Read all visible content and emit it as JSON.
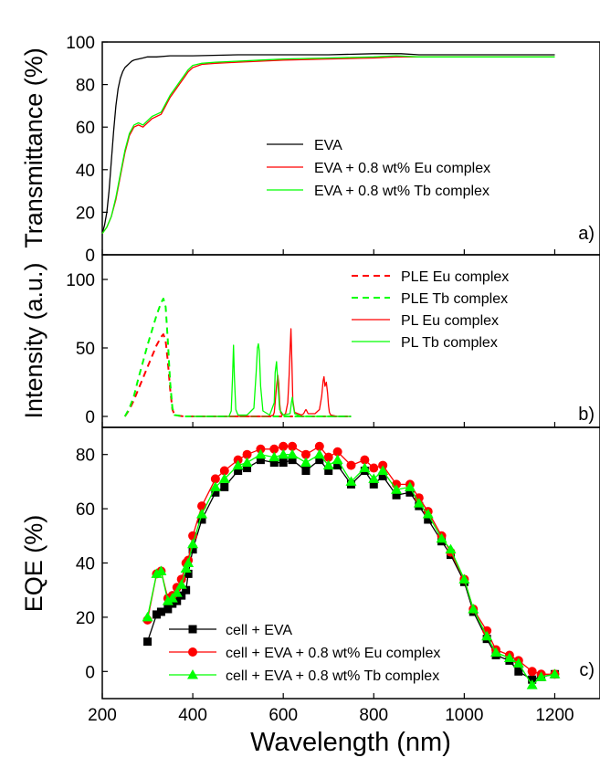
{
  "figure": {
    "xlabel": "Wavelength (nm)",
    "x_ticks": [
      200,
      400,
      600,
      800,
      1000,
      1200
    ]
  },
  "chart_data": [
    {
      "type": "line",
      "panel": "a)",
      "ylabel": "Transmittance (%)",
      "xlim": [
        200,
        1300
      ],
      "ylim": [
        0,
        100
      ],
      "y_ticks": [
        0,
        20,
        40,
        60,
        80,
        100
      ],
      "grid": false,
      "legend_position": "center-right",
      "series": [
        {
          "name": "EVA",
          "color": "#000000",
          "x": [
            200,
            205,
            210,
            215,
            220,
            225,
            230,
            235,
            240,
            245,
            250,
            255,
            260,
            265,
            270,
            280,
            290,
            300,
            320,
            350,
            400,
            500,
            600,
            700,
            800,
            860,
            900,
            1000,
            1100,
            1200
          ],
          "y": [
            10,
            14,
            20,
            30,
            44,
            58,
            70,
            78,
            83,
            86,
            88,
            89,
            90,
            91,
            91.5,
            92,
            92.5,
            93,
            93,
            93.5,
            93.5,
            94,
            94,
            94,
            94.5,
            94.5,
            94,
            94,
            94,
            94
          ]
        },
        {
          "name": "EVA + 0.8 wt% Eu complex",
          "color": "#ff0000",
          "x": [
            200,
            210,
            220,
            230,
            240,
            250,
            260,
            270,
            280,
            290,
            300,
            310,
            320,
            330,
            340,
            350,
            360,
            370,
            380,
            390,
            400,
            420,
            450,
            500,
            550,
            600,
            700,
            800,
            850,
            900,
            1000,
            1100,
            1200
          ],
          "y": [
            10,
            13,
            18,
            26,
            37,
            48,
            56,
            60,
            61,
            60,
            62,
            64,
            65,
            66,
            70,
            74,
            77,
            80,
            83,
            86,
            88,
            89.5,
            90,
            90.5,
            91,
            91.5,
            92,
            92.5,
            93,
            93,
            93,
            93,
            93
          ]
        },
        {
          "name": "EVA + 0.8 wt% Tb complex",
          "color": "#00ff00",
          "x": [
            200,
            210,
            220,
            230,
            240,
            250,
            260,
            270,
            280,
            290,
            300,
            310,
            320,
            330,
            340,
            350,
            360,
            370,
            380,
            390,
            400,
            420,
            450,
            500,
            550,
            600,
            700,
            800,
            850,
            900,
            1000,
            1100,
            1200
          ],
          "y": [
            10,
            13,
            18,
            27,
            38,
            49,
            57,
            61,
            62,
            61,
            63,
            65,
            66,
            67,
            71,
            75,
            78,
            81,
            84,
            87,
            89,
            90,
            90.5,
            91,
            91.5,
            92,
            92.5,
            93,
            93.5,
            93,
            93,
            93,
            93
          ]
        }
      ]
    },
    {
      "type": "line",
      "panel": "b)",
      "ylabel": "Intensity (a.u.)",
      "xlim": [
        200,
        1300
      ],
      "ylim": [
        -8,
        118
      ],
      "y_ticks": [
        0,
        50,
        100
      ],
      "grid": false,
      "legend_position": "top-right",
      "series": [
        {
          "name": "PLE Eu complex",
          "color": "#ff0000",
          "dash": true,
          "x": [
            250,
            260,
            270,
            280,
            290,
            300,
            310,
            320,
            330,
            335,
            340,
            345,
            350,
            355,
            360,
            380,
            400,
            450,
            500,
            550,
            600,
            650,
            700,
            750
          ],
          "y": [
            0,
            5,
            12,
            20,
            28,
            36,
            44,
            52,
            58,
            60,
            55,
            40,
            20,
            5,
            1,
            0,
            0,
            0,
            0,
            0,
            0,
            0,
            0,
            0
          ]
        },
        {
          "name": "PLE Tb complex",
          "color": "#00ff00",
          "dash": true,
          "x": [
            250,
            260,
            270,
            280,
            290,
            300,
            310,
            320,
            330,
            335,
            340,
            345,
            350,
            355,
            360,
            380,
            400,
            450,
            500,
            550,
            600,
            650,
            700,
            750
          ],
          "y": [
            0,
            6,
            15,
            28,
            40,
            52,
            63,
            74,
            83,
            86,
            80,
            55,
            25,
            6,
            1,
            0,
            0,
            0,
            0,
            0,
            0,
            0,
            0,
            0
          ]
        },
        {
          "name": "PL Eu complex",
          "color": "#ff0000",
          "dash": false,
          "x": [
            400,
            570,
            578,
            580,
            582,
            585,
            588,
            590,
            592,
            594,
            597,
            600,
            605,
            610,
            613,
            615,
            617,
            619,
            621,
            625,
            640,
            645,
            648,
            650,
            652,
            655,
            670,
            680,
            685,
            688,
            690,
            692,
            695,
            698,
            700,
            702,
            705,
            720,
            750
          ],
          "y": [
            0,
            0,
            1,
            3,
            10,
            22,
            30,
            24,
            10,
            3,
            1,
            1,
            2,
            10,
            30,
            48,
            64,
            40,
            12,
            3,
            1,
            2,
            4,
            5,
            4,
            2,
            2,
            5,
            15,
            26,
            29,
            22,
            25,
            17,
            8,
            3,
            1,
            0,
            0
          ]
        },
        {
          "name": "PL Tb complex",
          "color": "#00ff00",
          "dash": false,
          "x": [
            400,
            480,
            485,
            488,
            490,
            492,
            495,
            500,
            520,
            535,
            540,
            543,
            545,
            547,
            550,
            555,
            570,
            580,
            582,
            585,
            588,
            592,
            600,
            615,
            618,
            620,
            622,
            625,
            640,
            750
          ],
          "y": [
            0,
            0,
            4,
            30,
            52,
            28,
            5,
            1,
            1,
            6,
            32,
            50,
            53,
            48,
            22,
            4,
            1,
            10,
            32,
            40,
            25,
            5,
            1,
            2,
            10,
            14,
            8,
            2,
            0,
            0
          ]
        }
      ]
    },
    {
      "type": "line",
      "panel": "c)",
      "ylabel": "EQE (%)",
      "xlim": [
        200,
        1300
      ],
      "ylim": [
        -10,
        90
      ],
      "y_ticks": [
        0,
        20,
        40,
        60,
        80
      ],
      "grid": false,
      "legend_position": "bottom-left",
      "series": [
        {
          "name": "cell + EVA",
          "color": "#000000",
          "marker": "square",
          "x": [
            300,
            320,
            330,
            345,
            355,
            365,
            375,
            385,
            390,
            400,
            420,
            450,
            470,
            500,
            520,
            550,
            580,
            600,
            620,
            650,
            680,
            700,
            720,
            750,
            780,
            800,
            820,
            850,
            880,
            900,
            920,
            950,
            970,
            1000,
            1020,
            1050,
            1070,
            1100,
            1120,
            1150,
            1170,
            1200
          ],
          "y": [
            11,
            21,
            22,
            23,
            25,
            26,
            28,
            30,
            36,
            45,
            56,
            66,
            68,
            74,
            75,
            78,
            77,
            77,
            78,
            74,
            78,
            74,
            76,
            69,
            74,
            69,
            72,
            65,
            66,
            61,
            56,
            48,
            43,
            33,
            22,
            12,
            6,
            4,
            0,
            -3,
            -2,
            -1
          ]
        },
        {
          "name": "cell + EVA + 0.8 wt% Eu complex",
          "color": "#ff0000",
          "marker": "circle",
          "x": [
            300,
            320,
            330,
            345,
            355,
            365,
            375,
            385,
            390,
            400,
            420,
            450,
            470,
            500,
            520,
            550,
            580,
            600,
            620,
            650,
            680,
            700,
            720,
            750,
            780,
            800,
            820,
            850,
            880,
            900,
            920,
            950,
            970,
            1000,
            1020,
            1050,
            1070,
            1100,
            1120,
            1150,
            1170,
            1200
          ],
          "y": [
            19,
            36,
            37,
            27,
            28,
            31,
            34,
            40,
            41,
            50,
            61,
            71,
            74,
            78,
            80,
            82,
            82,
            83,
            83,
            80,
            83,
            79,
            81,
            76,
            78,
            75,
            76,
            69,
            69,
            64,
            59,
            50,
            44,
            34,
            23,
            15,
            8,
            6,
            4,
            0,
            -1,
            -1
          ]
        },
        {
          "name": "cell + EVA + 0.8 wt% Tb complex",
          "color": "#00ff00",
          "marker": "triangle",
          "x": [
            300,
            320,
            330,
            345,
            355,
            365,
            375,
            385,
            390,
            400,
            420,
            450,
            470,
            500,
            520,
            550,
            580,
            600,
            620,
            650,
            680,
            700,
            720,
            750,
            780,
            800,
            820,
            850,
            880,
            900,
            920,
            950,
            970,
            1000,
            1020,
            1050,
            1070,
            1100,
            1120,
            1150,
            1170,
            1200
          ],
          "y": [
            20,
            36,
            37,
            26,
            27,
            29,
            32,
            38,
            40,
            47,
            58,
            68,
            71,
            76,
            77,
            80,
            79,
            80,
            80,
            77,
            80,
            76,
            78,
            70,
            75,
            71,
            74,
            67,
            68,
            62,
            58,
            49,
            45,
            34,
            23,
            13,
            7,
            5,
            3,
            -5,
            -2,
            -1
          ]
        }
      ]
    }
  ]
}
